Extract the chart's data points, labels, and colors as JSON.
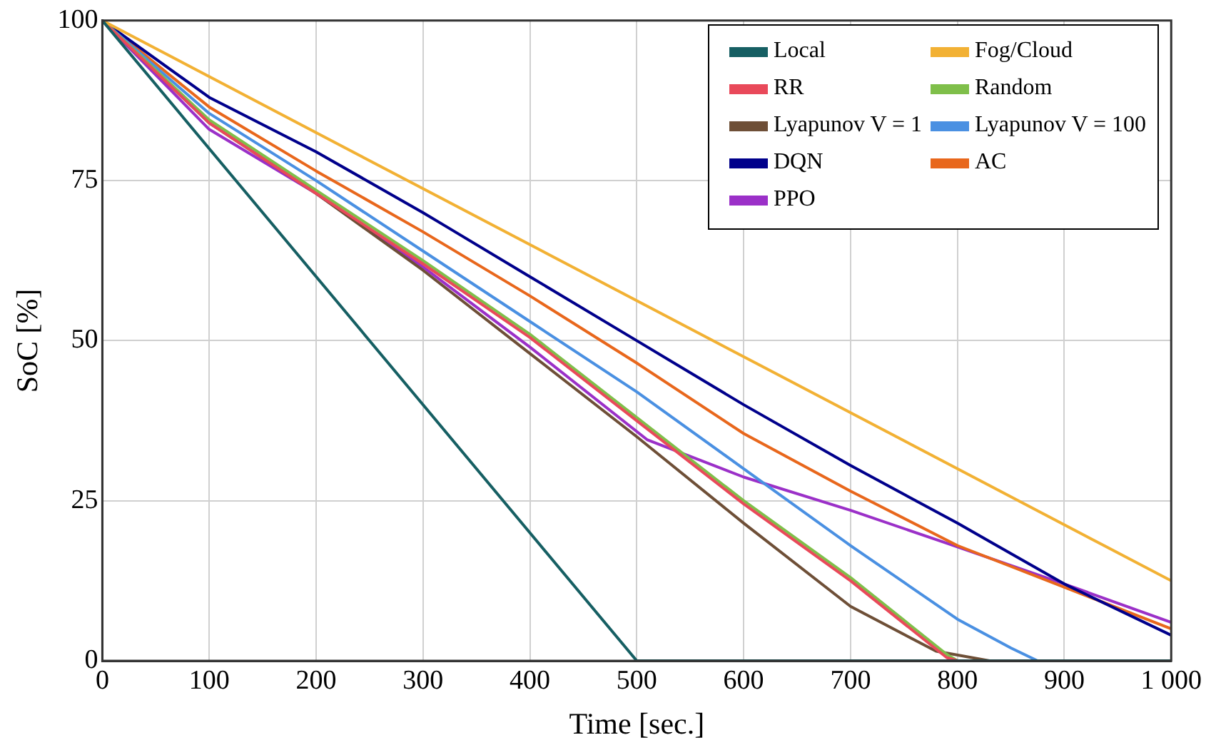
{
  "chart_data": {
    "type": "line",
    "xlabel": "Time [sec.]",
    "ylabel": "SoC [%]",
    "xlim": [
      0,
      1000
    ],
    "ylim": [
      0,
      100
    ],
    "xticks": [
      0,
      100,
      200,
      300,
      400,
      500,
      600,
      700,
      800,
      900,
      {
        "value": 1000,
        "label": "1 000"
      }
    ],
    "yticks": [
      0,
      25,
      50,
      75,
      100
    ],
    "grid": true,
    "legend": "top right",
    "marker": "none",
    "line_style": "solid",
    "series": [
      {
        "name": "Local",
        "color": "#165f63",
        "x": [
          0,
          500,
          1000
        ],
        "values": [
          100,
          0,
          0
        ]
      },
      {
        "name": "Fog/Cloud",
        "color": "#f2b134",
        "x": [
          0,
          1000
        ],
        "values": [
          100,
          12.5
        ]
      },
      {
        "name": "RR",
        "color": "#e9495a",
        "x": [
          0,
          100,
          200,
          300,
          400,
          500,
          600,
          700,
          790,
          800,
          1000
        ],
        "values": [
          100,
          84,
          73,
          62,
          50.5,
          37.5,
          24.5,
          12.5,
          0.5,
          0,
          0
        ]
      },
      {
        "name": "Random",
        "color": "#7fbf4a",
        "x": [
          0,
          100,
          200,
          300,
          400,
          500,
          600,
          700,
          790,
          800,
          1000
        ],
        "values": [
          100,
          84.5,
          73.5,
          62.5,
          51,
          38,
          25,
          13,
          1,
          0,
          0
        ]
      },
      {
        "name": "Lyapunov V = 1",
        "color": "#6e4f37",
        "x": [
          0,
          100,
          200,
          300,
          400,
          500,
          600,
          700,
          780,
          830,
          1000
        ],
        "values": [
          100,
          84,
          73,
          61,
          48,
          35,
          21.5,
          8.5,
          1.5,
          0,
          0
        ]
      },
      {
        "name": "Lyapunov V = 100",
        "color": "#4a90e2",
        "x": [
          0,
          100,
          200,
          300,
          400,
          500,
          600,
          700,
          800,
          850,
          875,
          1000
        ],
        "values": [
          100,
          85.5,
          75,
          64,
          53,
          42,
          30,
          18,
          6.5,
          2,
          0,
          0
        ]
      },
      {
        "name": "DQN",
        "color": "#00008b",
        "x": [
          0,
          100,
          200,
          300,
          320,
          400,
          500,
          600,
          700,
          800,
          900,
          1000
        ],
        "values": [
          100,
          88,
          79.5,
          70,
          68,
          60,
          50,
          40,
          30.5,
          21.5,
          12,
          4
        ]
      },
      {
        "name": "AC",
        "color": "#e8671c",
        "x": [
          0,
          100,
          200,
          300,
          400,
          500,
          600,
          700,
          800,
          900,
          1000
        ],
        "values": [
          100,
          86.5,
          76.5,
          67,
          57,
          46.5,
          35.5,
          26.5,
          18,
          11.5,
          5
        ]
      },
      {
        "name": "PPO",
        "color": "#9b30c8",
        "x": [
          0,
          100,
          200,
          300,
          400,
          510,
          600,
          700,
          800,
          900,
          1000
        ],
        "values": [
          100,
          83,
          73,
          61.5,
          49,
          34.5,
          28.7,
          23.5,
          17.8,
          12,
          6
        ]
      }
    ]
  }
}
